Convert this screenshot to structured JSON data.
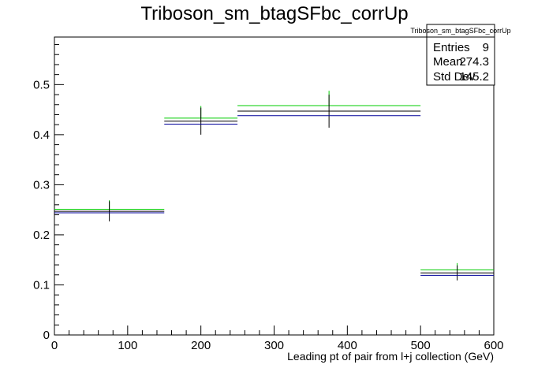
{
  "chart_data": {
    "type": "histogram",
    "title": "Triboson_sm_btagSFbc_corrUp",
    "xlabel": "Leading pt of pair from l+j collection (GeV)",
    "ylabel": "",
    "xlim": [
      0,
      600
    ],
    "ylim": [
      0,
      0.595
    ],
    "x_ticks": [
      "0",
      "100",
      "200",
      "300",
      "400",
      "500",
      "600"
    ],
    "y_ticks": [
      "0",
      "0.1",
      "0.2",
      "0.3",
      "0.4",
      "0.5"
    ],
    "bins": [
      {
        "low": 0,
        "high": 150,
        "center": 75
      },
      {
        "low": 150,
        "high": 250,
        "center": 200
      },
      {
        "low": 250,
        "high": 500,
        "center": 375
      },
      {
        "low": 500,
        "high": 600,
        "center": 550
      }
    ],
    "series": [
      {
        "color": "#00cc00",
        "values": [
          0.251,
          0.433,
          0.458,
          0.13
        ],
        "errors": [
          0.0,
          0.0,
          0.0,
          0.0
        ]
      },
      {
        "color": "#000000",
        "values": [
          0.247,
          0.427,
          0.447,
          0.124
        ],
        "errors": [
          0.02,
          0.027,
          0.033,
          0.015
        ]
      },
      {
        "color": "#000099",
        "values": [
          0.244,
          0.421,
          0.438,
          0.119
        ],
        "errors": [
          0.0,
          0.0,
          0.0,
          0.0
        ]
      }
    ],
    "stats": {
      "title": "Triboson_sm_btagSFbc_corrUp",
      "rows": [
        {
          "label": "Entries",
          "value": "9"
        },
        {
          "label": "Mean",
          "value": "274.3"
        },
        {
          "label": "Std Dev",
          "value": "145.2"
        }
      ]
    },
    "legend_position": "top-right",
    "grid": false
  }
}
